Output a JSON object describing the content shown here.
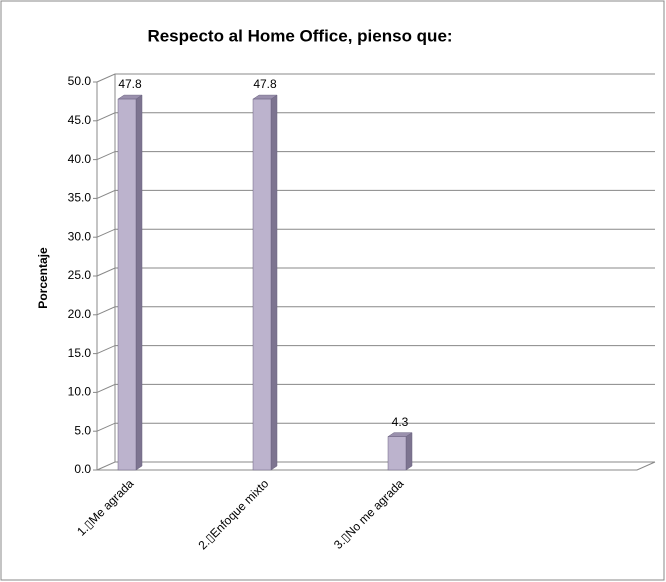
{
  "chart_data": {
    "type": "bar",
    "title": "Respecto al Home Office, pienso que:",
    "y_label": "Porcentaje",
    "categories": [
      "1.▯Me agrada",
      "2.▯Enfoque mixto",
      "3.▯No me agrada"
    ],
    "values": [
      47.8,
      47.8,
      4.3
    ],
    "color": "#bcb3cd",
    "ylim": [
      0,
      50
    ],
    "yticks": [
      {
        "value": 0,
        "label": "0.0"
      },
      {
        "value": 5,
        "label": "5.0"
      },
      {
        "value": 10,
        "label": "10.0"
      },
      {
        "value": 15,
        "label": "15.0"
      },
      {
        "value": 20,
        "label": "20.0"
      },
      {
        "value": 25,
        "label": "25.0"
      },
      {
        "value": 30,
        "label": "30.0"
      },
      {
        "value": 35,
        "label": "35.0"
      },
      {
        "value": 40,
        "label": "40.0"
      },
      {
        "value": 45,
        "label": "45.0"
      },
      {
        "value": 50,
        "label": "50.0"
      }
    ],
    "grid": true
  }
}
